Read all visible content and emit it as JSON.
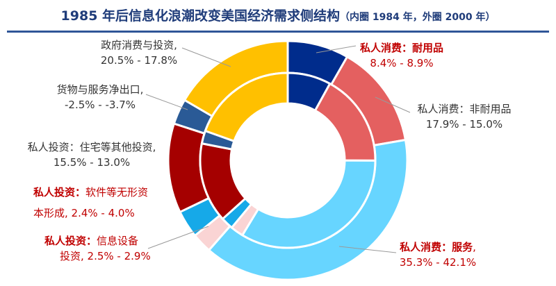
{
  "title": {
    "main": "1985 年后信息化浪潮改变美国经济需求侧结构",
    "sub": "（内圈 1984 年，外圈 2000 年）"
  },
  "chart_data": {
    "type": "pie",
    "subtype": "double-donut",
    "title": "1985 年后信息化浪潮改变美国经济需求侧结构（内圈 1984 年，外圈 2000 年）",
    "rings": [
      "1984",
      "2000"
    ],
    "categories": [
      {
        "label_prefix": "私人消费：",
        "label_name": "耐用品",
        "range": "8.4% - 8.9%",
        "values": [
          8.4,
          8.9
        ],
        "color": "#002c8c",
        "label_color": "#c00000",
        "prefix_bold": true,
        "name_bold": true
      },
      {
        "label_prefix": "私人消费：",
        "label_name": "非耐用品",
        "range": "17.9% - 15.0%",
        "values": [
          17.9,
          15.0
        ],
        "color": "#e46060",
        "label_color": "#333333",
        "prefix_bold": false,
        "name_bold": false
      },
      {
        "label_prefix": "私人消费：",
        "label_name": "服务",
        "range": "35.3% - 42.1%",
        "values": [
          35.3,
          42.1
        ],
        "color": "#67d5ff",
        "label_color": "#c00000",
        "prefix_bold": true,
        "name_bold": true
      },
      {
        "label_prefix": "私人投资：",
        "label_name": "信息设备",
        "range": "2.5% -  2.9%",
        "values": [
          2.5,
          2.9
        ],
        "color": "#fad4d4",
        "label_color": "#c00000",
        "prefix_bold": true,
        "name_bold": false
      },
      {
        "label_prefix": "私人投资：",
        "label_name": "软件等无形资",
        "range": "2.4% - 4.0%",
        "values": [
          2.4,
          4.0
        ],
        "color": "#16a9e8",
        "label_color": "#c00000",
        "prefix_bold": true,
        "name_bold": false
      },
      {
        "label_prefix": "私人投资：",
        "label_name": "住宅等其他投资",
        "range": "15.5% - 13.0%",
        "values": [
          15.5,
          13.0
        ],
        "color": "#a50000",
        "label_color": "#333333",
        "prefix_bold": false,
        "name_bold": false
      },
      {
        "label_prefix": "",
        "label_name": "货物与服务净出口",
        "range": "-2.5% -  -3.7%",
        "values": [
          -2.5,
          -3.7
        ],
        "color": "#2a5a96",
        "label_color": "#333333",
        "prefix_bold": false,
        "name_bold": false
      },
      {
        "label_prefix": "",
        "label_name": "政府消费与投资",
        "range": "20.5% - 17.8%",
        "values": [
          20.5,
          17.8
        ],
        "color": "#ffc000",
        "label_color": "#333333",
        "prefix_bold": false,
        "name_bold": false
      }
    ]
  },
  "labels": {
    "durable": {
      "prefix": "私人消费：",
      "name": "耐用品",
      "value": "8.4% - 8.9%"
    },
    "nondurable": {
      "prefix": "私人消费：",
      "name": "非耐用品",
      "value": "17.9% - 15.0%"
    },
    "services": {
      "prefix": "私人消费：",
      "name": "服务",
      "suffix": ",",
      "value": "35.3% - 42.1%"
    },
    "info_equipment": {
      "prefix": "私人投资：",
      "name": "信息设备",
      "value_prefix": "投资",
      "value": ", 2.5% -  2.9%"
    },
    "software": {
      "prefix": "私人投资：",
      "name": "软件等无形资",
      "value_prefix": "本形成",
      "value": ", 2.4% - 4.0%"
    },
    "residential": {
      "prefix": "私人投资：",
      "name": "住宅等其他投资",
      "suffix": ",",
      "value": "15.5% - 13.0%"
    },
    "net_exports": {
      "name": "货物与服务净出口",
      "suffix": ",",
      "value": "-2.5% -  -3.7%"
    },
    "government": {
      "name": "政府消费与投资",
      "suffix": ",",
      "value": "20.5% - 17.8%"
    }
  }
}
